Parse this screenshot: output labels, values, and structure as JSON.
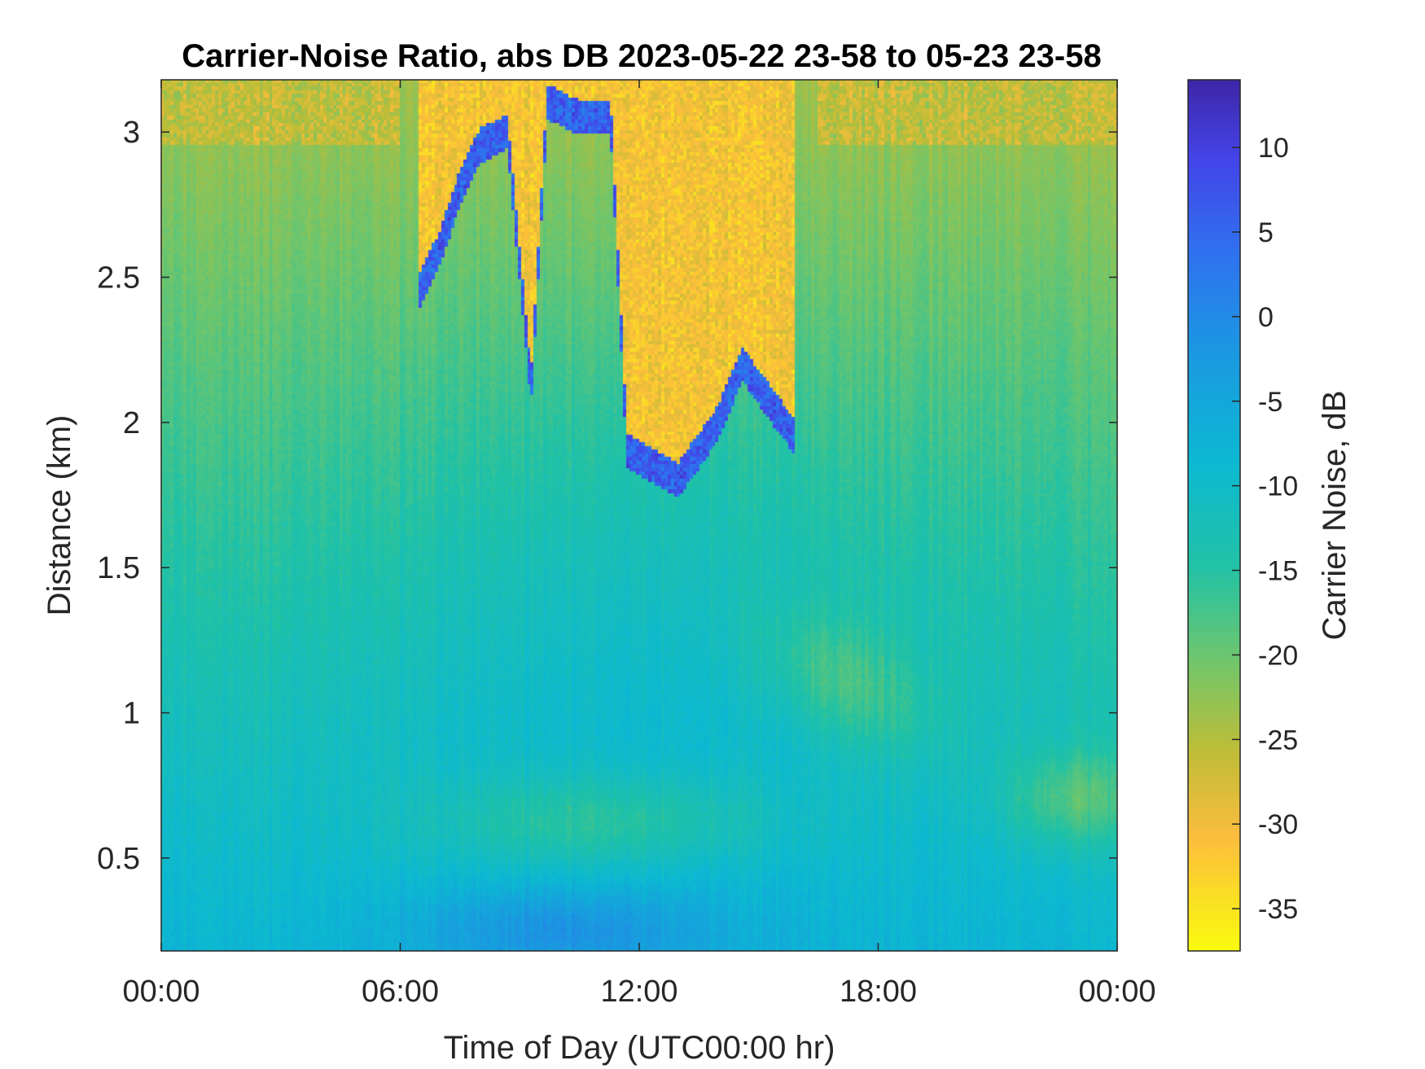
{
  "chart_data": {
    "type": "heatmap",
    "title": "Carrier-Noise Ratio, abs DB 2023-05-22 23-58 to 05-23 23-58",
    "xlabel": "Time of Day (UTC00:00 hr)",
    "ylabel": "Distance (km)",
    "xlim_hours": [
      0,
      24
    ],
    "ylim_km": [
      0.18,
      3.18
    ],
    "x_ticks": [
      {
        "hour": 0,
        "label": "00:00"
      },
      {
        "hour": 6,
        "label": "06:00"
      },
      {
        "hour": 12,
        "label": "12:00"
      },
      {
        "hour": 18,
        "label": "18:00"
      },
      {
        "hour": 24,
        "label": "00:00"
      }
    ],
    "y_ticks": [
      {
        "value": 0.5,
        "label": "0.5"
      },
      {
        "value": 1,
        "label": "1"
      },
      {
        "value": 1.5,
        "label": "1.5"
      },
      {
        "value": 2,
        "label": "2"
      },
      {
        "value": 2.5,
        "label": "2.5"
      },
      {
        "value": 3,
        "label": "3"
      }
    ],
    "colorbar": {
      "label": "Carrier Noise, dB",
      "clim": [
        -37.5,
        14
      ],
      "ticks": [
        {
          "value": 10,
          "label": "10"
        },
        {
          "value": 5,
          "label": "5"
        },
        {
          "value": 0,
          "label": "0"
        },
        {
          "value": -5,
          "label": "-5"
        },
        {
          "value": -10,
          "label": "-10"
        },
        {
          "value": -15,
          "label": "-15"
        },
        {
          "value": -20,
          "label": "-20"
        },
        {
          "value": -25,
          "label": "-25"
        },
        {
          "value": -30,
          "label": "-30"
        },
        {
          "value": -35,
          "label": "-35"
        }
      ],
      "colormap": "parula",
      "reversed": true
    },
    "colors": {
      "yellow": "#f9fb0e",
      "orange": "#fec339",
      "green": "#8dc051",
      "teal": "#20c0a6",
      "cyan": "#14b2d4",
      "blue": "#2f72f0",
      "dark_blue": "#3e2bb6"
    },
    "features": {
      "blue_cloud_arc": [
        {
          "hour": 6.5,
          "km": 2.45
        },
        {
          "hour": 7.0,
          "km": 2.6
        },
        {
          "hour": 7.5,
          "km": 2.8
        },
        {
          "hour": 8.0,
          "km": 2.95
        },
        {
          "hour": 8.7,
          "km": 3.0
        },
        {
          "hour": 9.3,
          "km": 2.1
        },
        {
          "hour": 9.7,
          "km": 3.1
        },
        {
          "hour": 10.5,
          "km": 3.05
        },
        {
          "hour": 11.3,
          "km": 3.05
        },
        {
          "hour": 11.7,
          "km": 1.9
        },
        {
          "hour": 13.0,
          "km": 1.8
        },
        {
          "hour": 14.0,
          "km": 2.0
        },
        {
          "hour": 14.6,
          "km": 2.2
        },
        {
          "hour": 15.9,
          "km": 1.95
        }
      ]
    }
  }
}
